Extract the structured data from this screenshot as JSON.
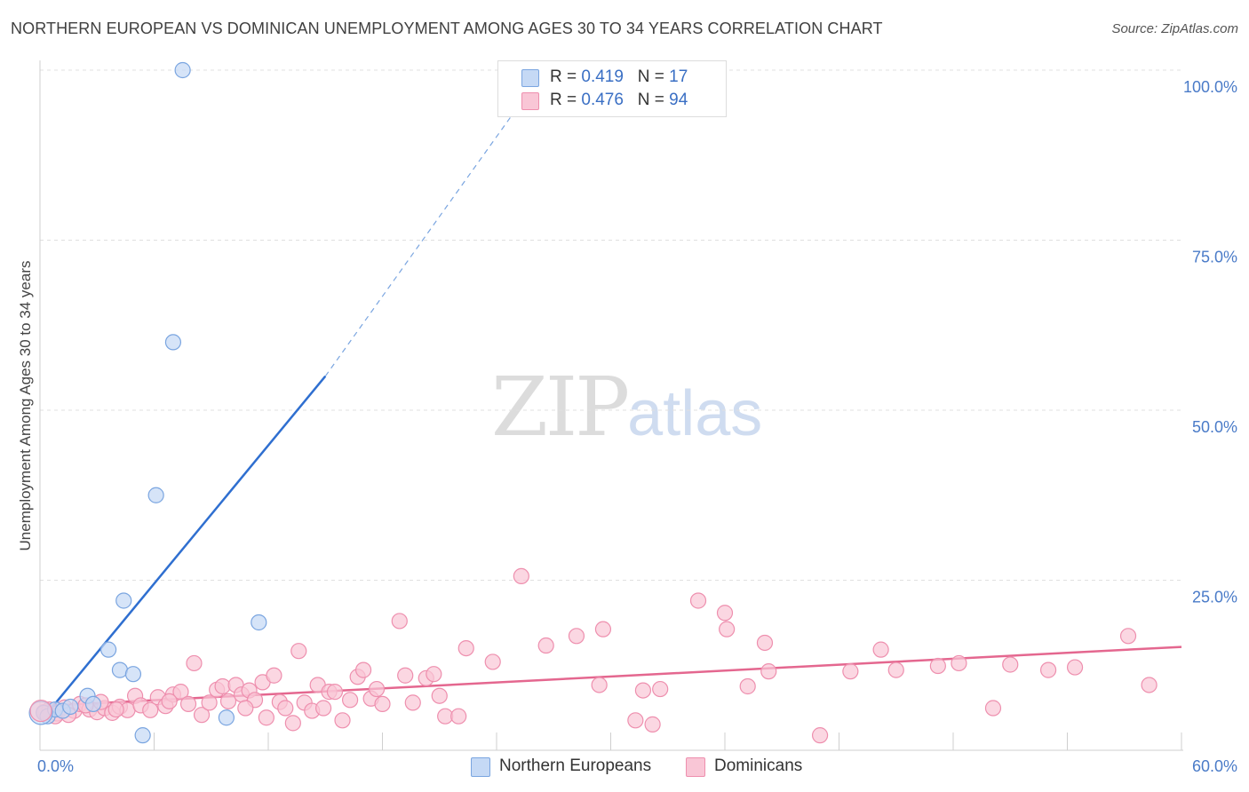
{
  "header": {
    "title": "NORTHERN EUROPEAN VS DOMINICAN UNEMPLOYMENT AMONG AGES 30 TO 34 YEARS CORRELATION CHART",
    "source": "Source: ZipAtlas.com"
  },
  "watermark": {
    "zip": "ZIP",
    "atlas": "atlas"
  },
  "legend": {
    "r_label": "R = ",
    "n_label": "N = ",
    "rows": [
      {
        "r": "0.419",
        "n": "17"
      },
      {
        "r": "0.476",
        "n": "94"
      }
    ]
  },
  "colors": {
    "blue_fill": "#c5d9f5",
    "blue_stroke": "#7aa5e0",
    "blue_line": "#2f6fd0",
    "pink_fill": "#f9c6d6",
    "pink_stroke": "#ee8fae",
    "pink_line": "#e4678f",
    "tick_text": "#4a7bc8",
    "grid": "#e0e0e0"
  },
  "chart_data": {
    "type": "scatter",
    "title": "NORTHERN EUROPEAN VS DOMINICAN UNEMPLOYMENT AMONG AGES 30 TO 34 YEARS CORRELATION CHART",
    "xlabel": "",
    "ylabel": "Unemployment Among Ages 30 to 34 years",
    "xlim": [
      0,
      60
    ],
    "ylim": [
      0,
      100
    ],
    "x_tick_labels": [
      "0.0%",
      "60.0%"
    ],
    "y_ticks": [
      25,
      50,
      75,
      100
    ],
    "y_tick_labels": [
      "25.0%",
      "50.0%",
      "75.0%",
      "100.0%"
    ],
    "grid": true,
    "legend_position": "bottom",
    "series": [
      {
        "name": "Northern Europeans",
        "color": "#7aa5e0",
        "trend": {
          "x": [
            0.1,
            15.0
          ],
          "y": [
            4.5,
            55.0
          ],
          "dashed_to": [
            26.5,
            100.0
          ]
        },
        "points": [
          [
            0.2,
            5.5
          ],
          [
            0.4,
            5.0
          ],
          [
            0.8,
            6.0
          ],
          [
            1.2,
            5.8
          ],
          [
            1.6,
            6.4
          ],
          [
            2.5,
            8.0
          ],
          [
            2.8,
            6.8
          ],
          [
            3.6,
            14.8
          ],
          [
            4.2,
            11.8
          ],
          [
            4.4,
            22.0
          ],
          [
            4.9,
            11.2
          ],
          [
            5.4,
            2.2
          ],
          [
            6.1,
            37.5
          ],
          [
            7.0,
            60.0
          ],
          [
            7.5,
            100.0
          ],
          [
            9.8,
            4.8
          ],
          [
            11.5,
            18.8
          ]
        ]
      },
      {
        "name": "Dominicans",
        "color": "#ee8fae",
        "trend": {
          "x": [
            0.1,
            60.0
          ],
          "y": [
            6.5,
            15.2
          ]
        },
        "points": [
          [
            0.2,
            5.6
          ],
          [
            0.5,
            6.0
          ],
          [
            0.9,
            5.4
          ],
          [
            1.3,
            6.3
          ],
          [
            1.8,
            5.8
          ],
          [
            2.1,
            6.8
          ],
          [
            2.6,
            6.0
          ],
          [
            3.0,
            5.6
          ],
          [
            3.4,
            6.2
          ],
          [
            3.8,
            5.5
          ],
          [
            4.2,
            6.4
          ],
          [
            4.6,
            5.9
          ],
          [
            5.0,
            8.0
          ],
          [
            5.3,
            6.6
          ],
          [
            5.8,
            5.9
          ],
          [
            6.2,
            7.8
          ],
          [
            6.6,
            6.5
          ],
          [
            7.0,
            8.2
          ],
          [
            7.4,
            8.6
          ],
          [
            7.8,
            6.8
          ],
          [
            8.1,
            12.8
          ],
          [
            8.5,
            5.2
          ],
          [
            8.9,
            7.0
          ],
          [
            9.3,
            8.9
          ],
          [
            9.6,
            9.4
          ],
          [
            9.9,
            7.2
          ],
          [
            10.3,
            9.6
          ],
          [
            10.6,
            8.2
          ],
          [
            11.0,
            8.8
          ],
          [
            11.3,
            7.4
          ],
          [
            11.7,
            10.0
          ],
          [
            11.9,
            4.8
          ],
          [
            12.3,
            11.0
          ],
          [
            12.6,
            7.1
          ],
          [
            12.9,
            6.2
          ],
          [
            13.3,
            4.0
          ],
          [
            13.6,
            14.6
          ],
          [
            13.9,
            7.0
          ],
          [
            14.3,
            5.8
          ],
          [
            14.6,
            9.6
          ],
          [
            14.9,
            6.2
          ],
          [
            15.2,
            8.6
          ],
          [
            15.5,
            8.6
          ],
          [
            15.9,
            4.4
          ],
          [
            16.3,
            7.4
          ],
          [
            16.7,
            10.8
          ],
          [
            17.0,
            11.8
          ],
          [
            17.4,
            7.6
          ],
          [
            17.7,
            9.0
          ],
          [
            18.0,
            6.8
          ],
          [
            18.9,
            19.0
          ],
          [
            19.2,
            11.0
          ],
          [
            19.6,
            7.0
          ],
          [
            20.3,
            10.6
          ],
          [
            20.7,
            11.2
          ],
          [
            21.0,
            8.0
          ],
          [
            21.3,
            5.0
          ],
          [
            22.4,
            15.0
          ],
          [
            22.0,
            5.0
          ],
          [
            23.8,
            13.0
          ],
          [
            25.3,
            25.6
          ],
          [
            26.6,
            15.4
          ],
          [
            28.2,
            16.8
          ],
          [
            29.4,
            9.6
          ],
          [
            29.6,
            17.8
          ],
          [
            31.3,
            4.4
          ],
          [
            31.7,
            8.8
          ],
          [
            32.2,
            3.8
          ],
          [
            32.6,
            9.0
          ],
          [
            34.6,
            22.0
          ],
          [
            36.1,
            17.8
          ],
          [
            36.0,
            20.2
          ],
          [
            37.2,
            9.4
          ],
          [
            38.1,
            15.8
          ],
          [
            38.3,
            11.6
          ],
          [
            41.0,
            2.2
          ],
          [
            42.6,
            11.6
          ],
          [
            44.2,
            14.8
          ],
          [
            45.0,
            11.8
          ],
          [
            47.2,
            12.4
          ],
          [
            48.3,
            12.8
          ],
          [
            50.1,
            6.2
          ],
          [
            51.0,
            12.6
          ],
          [
            53.0,
            11.8
          ],
          [
            54.4,
            12.2
          ],
          [
            57.2,
            16.8
          ],
          [
            58.3,
            9.6
          ],
          [
            0.8,
            5.0
          ],
          [
            1.5,
            5.2
          ],
          [
            2.4,
            6.6
          ],
          [
            3.2,
            7.1
          ],
          [
            4.0,
            6.0
          ],
          [
            6.8,
            7.2
          ],
          [
            10.8,
            6.2
          ]
        ]
      }
    ]
  }
}
